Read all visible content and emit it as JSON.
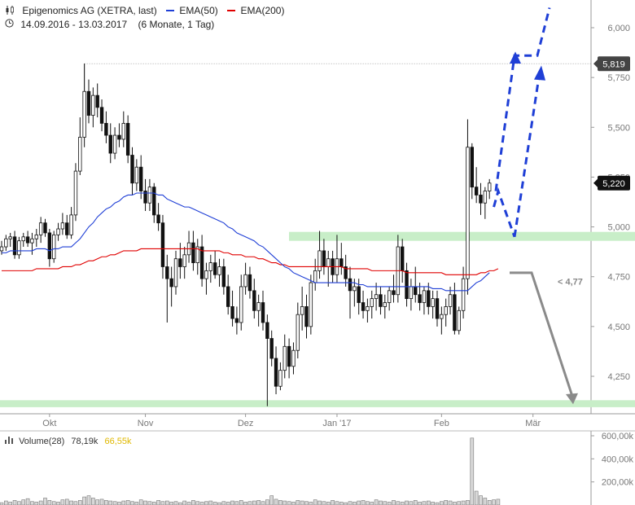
{
  "header": {
    "logo_icon": "candlestick-icon",
    "title": "Epigenomics AG (XETRA, last)",
    "ema50_label": "EMA(50)",
    "ema200_label": "EMA(200)",
    "ema50_color": "#1f3fd6",
    "ema200_color": "#e00000",
    "clock_icon": "clock-icon",
    "period": "14.09.2016 - 13.03.2017",
    "period_detail": "(6 Monate, 1 Tag)"
  },
  "volume": {
    "label": "Volume(28)",
    "value1": "78,19k",
    "value2": "66,55k",
    "value2_color": "#e0b800",
    "ticks": [
      "600,00k",
      "400,00k",
      "200,00k"
    ]
  },
  "chart_data": {
    "type": "candlestick",
    "ylim": [
      4.09,
      6.07
    ],
    "yticks": [
      {
        "v": 6.0,
        "label": "6,000"
      },
      {
        "v": 5.75,
        "label": "5,750"
      },
      {
        "v": 5.5,
        "label": "5,500"
      },
      {
        "v": 5.25,
        "label": "5,250"
      },
      {
        "v": 5.0,
        "label": "5,000"
      },
      {
        "v": 4.75,
        "label": "4,750"
      },
      {
        "v": 4.5,
        "label": "4,500"
      },
      {
        "v": 4.25,
        "label": "4,250"
      }
    ],
    "xticks": [
      "Okt",
      "Nov",
      "Dez",
      "Jan '17",
      "Feb",
      "Mär"
    ],
    "xtick_index": [
      11,
      33,
      56,
      77,
      101,
      122
    ],
    "high_marker": {
      "value": 5.819,
      "label": "5,819"
    },
    "last_marker": {
      "value": 5.22,
      "label": "5,220"
    },
    "target_label": "< 4,77",
    "zones": [
      {
        "from": 4.93,
        "to": 4.975,
        "color": "#c8eec8"
      },
      {
        "from": 4.095,
        "to": 4.13,
        "color": "#c8eec8"
      }
    ],
    "candles": [
      [
        4.88,
        4.93,
        4.86,
        4.9
      ],
      [
        4.9,
        4.96,
        4.88,
        4.94
      ],
      [
        4.94,
        4.97,
        4.9,
        4.95
      ],
      [
        4.95,
        4.98,
        4.84,
        4.86
      ],
      [
        4.86,
        4.95,
        4.84,
        4.93
      ],
      [
        4.93,
        4.97,
        4.9,
        4.95
      ],
      [
        4.95,
        4.98,
        4.9,
        4.92
      ],
      [
        4.92,
        4.97,
        4.86,
        4.94
      ],
      [
        4.94,
        4.99,
        4.9,
        4.96
      ],
      [
        4.96,
        5.05,
        4.92,
        5.02
      ],
      [
        5.02,
        5.04,
        4.95,
        4.97
      ],
      [
        4.97,
        4.99,
        4.8,
        4.84
      ],
      [
        4.84,
        4.98,
        4.82,
        4.96
      ],
      [
        4.96,
        5.02,
        4.93,
        4.99
      ],
      [
        4.99,
        5.07,
        4.96,
        5.02
      ],
      [
        5.02,
        5.06,
        4.94,
        4.96
      ],
      [
        4.96,
        5.1,
        4.94,
        5.06
      ],
      [
        5.06,
        5.32,
        5.03,
        5.28
      ],
      [
        5.28,
        5.55,
        5.26,
        5.45
      ],
      [
        5.45,
        5.82,
        5.4,
        5.68
      ],
      [
        5.68,
        5.74,
        5.52,
        5.56
      ],
      [
        5.56,
        5.7,
        5.5,
        5.66
      ],
      [
        5.66,
        5.72,
        5.55,
        5.6
      ],
      [
        5.6,
        5.64,
        5.48,
        5.52
      ],
      [
        5.52,
        5.58,
        5.42,
        5.46
      ],
      [
        5.46,
        5.52,
        5.32,
        5.37
      ],
      [
        5.37,
        5.5,
        5.34,
        5.46
      ],
      [
        5.46,
        5.52,
        5.4,
        5.44
      ],
      [
        5.44,
        5.58,
        5.4,
        5.52
      ],
      [
        5.52,
        5.56,
        5.32,
        5.36
      ],
      [
        5.36,
        5.4,
        5.16,
        5.22
      ],
      [
        5.22,
        5.34,
        5.18,
        5.3
      ],
      [
        5.3,
        5.36,
        5.14,
        5.18
      ],
      [
        5.18,
        5.24,
        5.08,
        5.12
      ],
      [
        5.12,
        5.24,
        5.08,
        5.2
      ],
      [
        5.2,
        5.22,
        5.02,
        5.06
      ],
      [
        5.06,
        5.12,
        4.98,
        5.02
      ],
      [
        5.02,
        5.06,
        4.74,
        4.8
      ],
      [
        4.8,
        4.86,
        4.52,
        4.74
      ],
      [
        4.74,
        4.8,
        4.6,
        4.7
      ],
      [
        4.7,
        4.88,
        4.66,
        4.84
      ],
      [
        4.84,
        4.92,
        4.74,
        4.8
      ],
      [
        4.8,
        4.9,
        4.74,
        4.86
      ],
      [
        4.86,
        4.98,
        4.82,
        4.92
      ],
      [
        4.92,
        4.98,
        4.78,
        4.82
      ],
      [
        4.82,
        4.94,
        4.76,
        4.9
      ],
      [
        4.9,
        4.96,
        4.7,
        4.74
      ],
      [
        4.74,
        4.82,
        4.66,
        4.78
      ],
      [
        4.78,
        4.86,
        4.72,
        4.82
      ],
      [
        4.82,
        4.88,
        4.74,
        4.76
      ],
      [
        4.76,
        4.84,
        4.7,
        4.8
      ],
      [
        4.8,
        4.84,
        4.66,
        4.7
      ],
      [
        4.7,
        4.76,
        4.56,
        4.6
      ],
      [
        4.6,
        4.68,
        4.5,
        4.54
      ],
      [
        4.54,
        4.6,
        4.46,
        4.52
      ],
      [
        4.52,
        4.76,
        4.48,
        4.7
      ],
      [
        4.7,
        4.82,
        4.66,
        4.76
      ],
      [
        4.76,
        4.8,
        4.64,
        4.68
      ],
      [
        4.68,
        4.74,
        4.54,
        4.58
      ],
      [
        4.58,
        4.66,
        4.5,
        4.62
      ],
      [
        4.62,
        4.68,
        4.48,
        4.52
      ],
      [
        4.52,
        4.56,
        4.1,
        4.44
      ],
      [
        4.44,
        4.48,
        4.3,
        4.34
      ],
      [
        4.34,
        4.4,
        4.16,
        4.2
      ],
      [
        4.2,
        4.32,
        4.18,
        4.28
      ],
      [
        4.28,
        4.46,
        4.24,
        4.4
      ],
      [
        4.4,
        4.44,
        4.24,
        4.3
      ],
      [
        4.3,
        4.42,
        4.26,
        4.38
      ],
      [
        4.38,
        4.62,
        4.34,
        4.56
      ],
      [
        4.56,
        4.7,
        4.48,
        4.6
      ],
      [
        4.6,
        4.66,
        4.44,
        4.5
      ],
      [
        4.5,
        4.76,
        4.46,
        4.72
      ],
      [
        4.72,
        4.84,
        4.68,
        4.78
      ],
      [
        4.78,
        4.98,
        4.74,
        4.88
      ],
      [
        4.88,
        4.94,
        4.76,
        4.8
      ],
      [
        4.8,
        4.88,
        4.7,
        4.84
      ],
      [
        4.84,
        4.88,
        4.72,
        4.76
      ],
      [
        4.76,
        4.96,
        4.72,
        4.84
      ],
      [
        4.84,
        4.92,
        4.76,
        4.8
      ],
      [
        4.8,
        4.86,
        4.7,
        4.74
      ],
      [
        4.74,
        4.8,
        4.54,
        4.68
      ],
      [
        4.68,
        4.74,
        4.6,
        4.7
      ],
      [
        4.7,
        4.74,
        4.56,
        4.62
      ],
      [
        4.62,
        4.68,
        4.54,
        4.58
      ],
      [
        4.58,
        4.64,
        4.52,
        4.6
      ],
      [
        4.6,
        4.68,
        4.54,
        4.64
      ],
      [
        4.64,
        4.72,
        4.58,
        4.66
      ],
      [
        4.66,
        4.7,
        4.56,
        4.6
      ],
      [
        4.6,
        4.66,
        4.54,
        4.62
      ],
      [
        4.62,
        4.7,
        4.58,
        4.68
      ],
      [
        4.68,
        4.76,
        4.62,
        4.66
      ],
      [
        4.66,
        4.96,
        4.62,
        4.9
      ],
      [
        4.9,
        4.94,
        4.72,
        4.78
      ],
      [
        4.78,
        4.82,
        4.6,
        4.64
      ],
      [
        4.64,
        4.74,
        4.58,
        4.7
      ],
      [
        4.7,
        4.8,
        4.62,
        4.66
      ],
      [
        4.66,
        4.72,
        4.58,
        4.62
      ],
      [
        4.62,
        4.7,
        4.56,
        4.68
      ],
      [
        4.68,
        4.72,
        4.56,
        4.6
      ],
      [
        4.6,
        4.68,
        4.54,
        4.64
      ],
      [
        4.64,
        4.68,
        4.5,
        4.54
      ],
      [
        4.54,
        4.6,
        4.46,
        4.56
      ],
      [
        4.56,
        4.64,
        4.5,
        4.6
      ],
      [
        4.6,
        4.7,
        4.56,
        4.66
      ],
      [
        4.66,
        4.72,
        4.46,
        4.48
      ],
      [
        4.48,
        4.6,
        4.46,
        4.58
      ],
      [
        4.58,
        4.8,
        4.54,
        4.74
      ],
      [
        4.74,
        5.54,
        4.66,
        5.4
      ],
      [
        5.4,
        5.42,
        5.14,
        5.2
      ],
      [
        5.2,
        5.3,
        5.12,
        5.16
      ],
      [
        5.16,
        5.22,
        5.06,
        5.12
      ],
      [
        5.12,
        5.2,
        5.04,
        5.18
      ],
      [
        5.18,
        5.24,
        5.14,
        5.22
      ]
    ],
    "ema50": [
      4.87,
      4.87,
      4.88,
      4.88,
      4.88,
      4.88,
      4.88,
      4.88,
      4.89,
      4.89,
      4.89,
      4.88,
      4.89,
      4.89,
      4.9,
      4.9,
      4.9,
      4.92,
      4.94,
      4.97,
      5.0,
      5.02,
      5.05,
      5.07,
      5.09,
      5.1,
      5.12,
      5.13,
      5.15,
      5.16,
      5.16,
      5.17,
      5.17,
      5.17,
      5.17,
      5.17,
      5.16,
      5.16,
      5.14,
      5.13,
      5.12,
      5.11,
      5.1,
      5.1,
      5.09,
      5.08,
      5.07,
      5.06,
      5.05,
      5.04,
      5.03,
      5.02,
      5.0,
      4.99,
      4.97,
      4.96,
      4.95,
      4.94,
      4.93,
      4.91,
      4.9,
      4.88,
      4.86,
      4.84,
      4.82,
      4.8,
      4.79,
      4.77,
      4.76,
      4.75,
      4.74,
      4.73,
      4.72,
      4.72,
      4.72,
      4.72,
      4.72,
      4.72,
      4.72,
      4.72,
      4.72,
      4.72,
      4.71,
      4.71,
      4.7,
      4.7,
      4.7,
      4.7,
      4.7,
      4.7,
      4.7,
      4.7,
      4.7,
      4.7,
      4.7,
      4.7,
      4.7,
      4.7,
      4.7,
      4.69,
      4.69,
      4.69,
      4.68,
      4.68,
      4.68,
      4.68,
      4.68,
      4.68,
      4.7,
      4.72,
      4.73,
      4.75,
      4.77
    ],
    "ema200": [
      4.78,
      4.78,
      4.78,
      4.78,
      4.78,
      4.78,
      4.78,
      4.78,
      4.79,
      4.79,
      4.79,
      4.79,
      4.79,
      4.79,
      4.8,
      4.8,
      4.8,
      4.81,
      4.81,
      4.82,
      4.83,
      4.83,
      4.84,
      4.85,
      4.85,
      4.86,
      4.86,
      4.87,
      4.88,
      4.88,
      4.88,
      4.88,
      4.89,
      4.89,
      4.89,
      4.89,
      4.89,
      4.89,
      4.89,
      4.89,
      4.89,
      4.89,
      4.89,
      4.89,
      4.89,
      4.89,
      4.88,
      4.88,
      4.88,
      4.88,
      4.88,
      4.87,
      4.87,
      4.86,
      4.86,
      4.86,
      4.85,
      4.85,
      4.85,
      4.84,
      4.84,
      4.83,
      4.82,
      4.82,
      4.81,
      4.81,
      4.8,
      4.8,
      4.8,
      4.8,
      4.8,
      4.8,
      4.8,
      4.8,
      4.8,
      4.8,
      4.8,
      4.8,
      4.8,
      4.79,
      4.79,
      4.79,
      4.79,
      4.79,
      4.79,
      4.78,
      4.78,
      4.78,
      4.78,
      4.78,
      4.78,
      4.78,
      4.78,
      4.77,
      4.77,
      4.77,
      4.77,
      4.77,
      4.77,
      4.77,
      4.77,
      4.77,
      4.76,
      4.76,
      4.76,
      4.76,
      4.76,
      4.76,
      4.76,
      4.76,
      4.77,
      4.77,
      4.78,
      4.78,
      4.79
    ],
    "volume_values": [
      20,
      35,
      25,
      40,
      30,
      45,
      55,
      30,
      25,
      35,
      60,
      40,
      30,
      25,
      45,
      50,
      35,
      30,
      40,
      70,
      80,
      60,
      45,
      50,
      40,
      35,
      30,
      25,
      35,
      40,
      30,
      25,
      45,
      35,
      30,
      25,
      40,
      30,
      35,
      25,
      30,
      20,
      35,
      25,
      40,
      30,
      25,
      30,
      35,
      25,
      20,
      30,
      25,
      35,
      30,
      40,
      25,
      30,
      35,
      40,
      30,
      45,
      80,
      50,
      40,
      35,
      30,
      25,
      40,
      35,
      30,
      25,
      45,
      35,
      30,
      25,
      40,
      30,
      25,
      20,
      30,
      25,
      35,
      40,
      30,
      25,
      45,
      35,
      30,
      25,
      40,
      30,
      25,
      35,
      30,
      40,
      25,
      30,
      35,
      25,
      20,
      30,
      40,
      35,
      25,
      30,
      35,
      40,
      580,
      120,
      80,
      60,
      40,
      45,
      50
    ],
    "projection_blue_up": [
      [
        5.08,
        6.12
      ],
      [
        5.22,
        0
      ],
      [
        5.86,
        0
      ],
      [
        5.86,
        0
      ]
    ],
    "projection_gray_label": "< 4,77"
  }
}
